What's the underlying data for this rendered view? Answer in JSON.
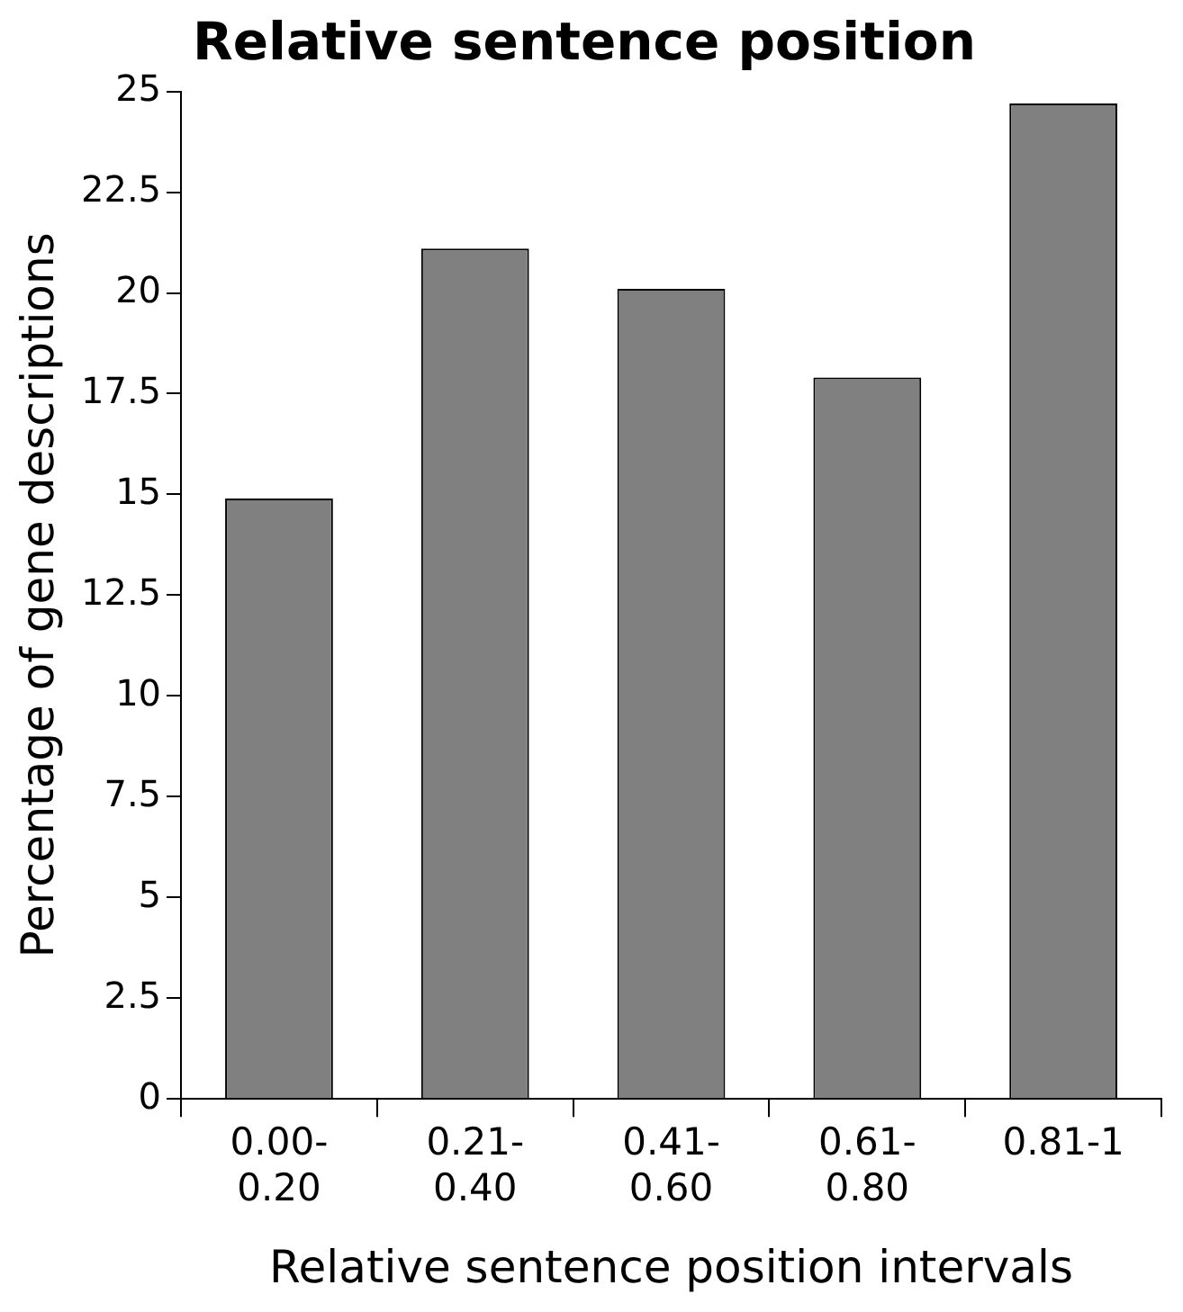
{
  "chart_data": {
    "type": "bar",
    "title": "Relative sentence position",
    "xlabel": "Relative sentence position intervals",
    "ylabel": "Percentage of gene descriptions",
    "categories": [
      "0.00-0.20",
      "0.21-0.40",
      "0.41-0.60",
      "0.61-0.80",
      "0.81-1"
    ],
    "values": [
      14.9,
      21.1,
      20.1,
      17.9,
      24.7
    ],
    "color": "#808080",
    "ylim": [
      0,
      25
    ],
    "yticks": [
      0,
      2.5,
      5,
      7.5,
      10,
      12.5,
      15,
      17.5,
      20,
      22.5,
      25
    ],
    "grid": false,
    "legend": false
  }
}
